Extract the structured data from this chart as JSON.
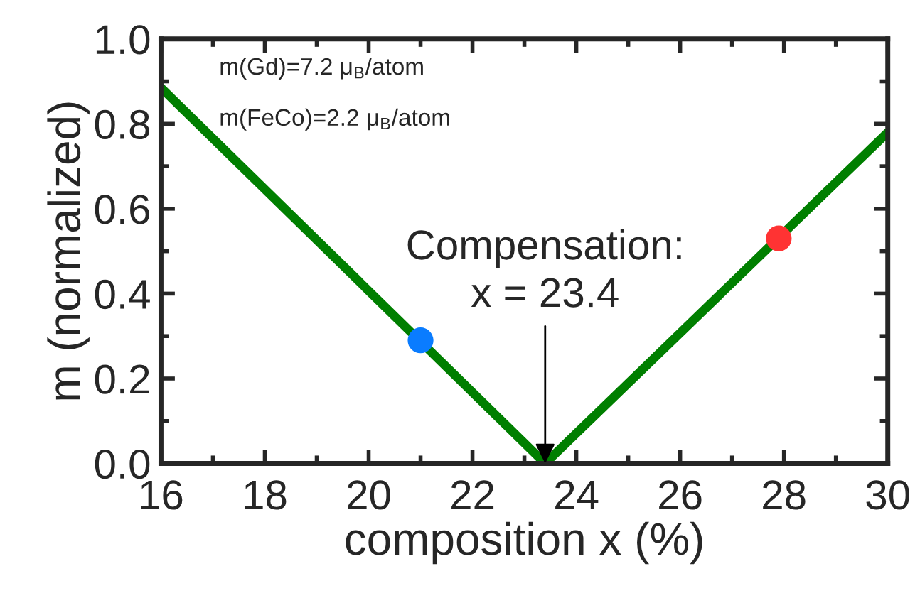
{
  "chart_data": {
    "type": "line",
    "xlabel": "composition x (%)",
    "ylabel": "m (normalized)",
    "xlim": [
      16,
      30
    ],
    "xticks": [
      16,
      18,
      20,
      22,
      24,
      26,
      28,
      30
    ],
    "ylim": [
      0,
      1.0
    ],
    "yticks": [
      {
        "value": 0,
        "label": "0.0"
      },
      0.2,
      0.4,
      0.6,
      0.8,
      {
        "value": 1.0,
        "label": "1.0"
      }
    ],
    "grid": false,
    "legend": false,
    "series": [
      {
        "x": [
          16,
          23.4,
          30
        ],
        "values": [
          0.885,
          0,
          0.78
        ],
        "color": "#007f00",
        "marker": "none",
        "line_style": "solid"
      },
      {
        "type": "scatter",
        "x": [
          21
        ],
        "values": [
          0.29
        ],
        "color": "#0a7cff",
        "marker": "circle"
      },
      {
        "type": "scatter",
        "x": [
          27.9
        ],
        "values": [
          0.53
        ],
        "color": "#ff3333",
        "marker": "circle"
      }
    ],
    "annotations": [
      "m(Gd)=7.2 μ$_{B}$/atom",
      "m(FeCo)=2.2 μ$_{B}$/atom",
      {
        "text": "Compensation:\nx = 23.4",
        "x": 23.4,
        "y": 0
      }
    ]
  }
}
